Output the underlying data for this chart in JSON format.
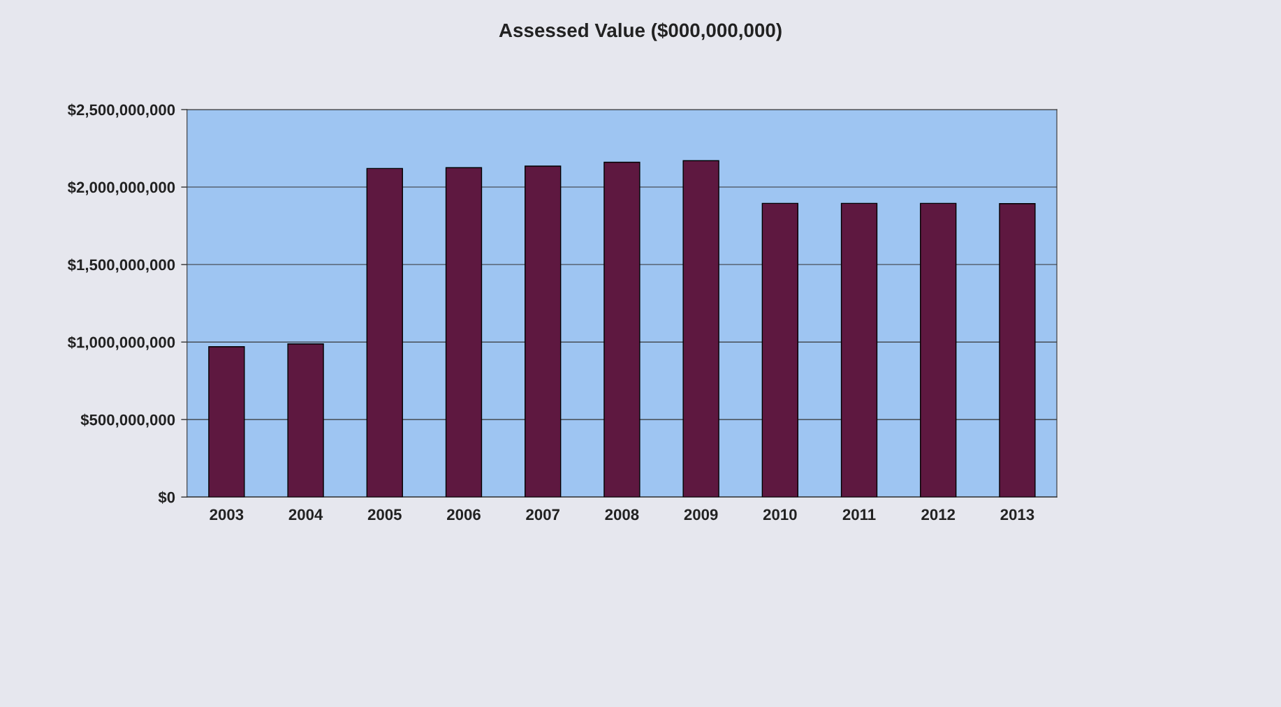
{
  "chart_data": {
    "type": "bar",
    "title": "Assessed Value ($000,000,000)",
    "categories": [
      "2003",
      "2004",
      "2005",
      "2006",
      "2007",
      "2008",
      "2009",
      "2010",
      "2011",
      "2012",
      "2013"
    ],
    "values": [
      970000000,
      988000000,
      2120000000,
      2125000000,
      2135000000,
      2160000000,
      2170000000,
      1895000000,
      1895000000,
      1895000000,
      1893000000
    ],
    "color": "#5e1840",
    "ylim": [
      0,
      2500000000
    ],
    "yticks": [
      {
        "value": 0,
        "label": "$0"
      },
      {
        "value": 500000000,
        "label": "$500,000,000"
      },
      {
        "value": 1000000000,
        "label": "$1,000,000,000"
      },
      {
        "value": 1500000000,
        "label": "$1,500,000,000"
      },
      {
        "value": 2000000000,
        "label": "$2,000,000,000"
      },
      {
        "value": 2500000000,
        "label": "$2,500,000,000"
      }
    ],
    "grid": "y",
    "legend": false
  }
}
